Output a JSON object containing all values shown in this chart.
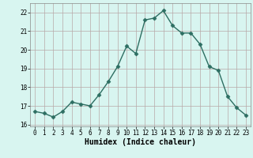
{
  "x": [
    0,
    1,
    2,
    3,
    4,
    5,
    6,
    7,
    8,
    9,
    10,
    11,
    12,
    13,
    14,
    15,
    16,
    17,
    18,
    19,
    20,
    21,
    22,
    23
  ],
  "y": [
    16.7,
    16.6,
    16.4,
    16.7,
    17.2,
    17.1,
    17.0,
    17.6,
    18.3,
    19.1,
    20.2,
    19.8,
    21.6,
    21.7,
    22.1,
    21.3,
    20.9,
    20.9,
    20.3,
    19.1,
    18.9,
    17.5,
    16.9,
    16.5
  ],
  "line_color": "#2d6e62",
  "marker": "D",
  "markersize": 2.5,
  "linewidth": 1.0,
  "bg_color": "#d8f5f0",
  "grid_color": "#b8a8a8",
  "xlabel": "Humidex (Indice chaleur)",
  "xlabel_fontsize": 7,
  "xlabel_fontweight": "bold",
  "ylim": [
    15.9,
    22.5
  ],
  "yticks": [
    16,
    17,
    18,
    19,
    20,
    21,
    22
  ],
  "xlim": [
    -0.5,
    23.5
  ],
  "xticks": [
    0,
    1,
    2,
    3,
    4,
    5,
    6,
    7,
    8,
    9,
    10,
    11,
    12,
    13,
    14,
    15,
    16,
    17,
    18,
    19,
    20,
    21,
    22,
    23
  ],
  "tick_fontsize": 5.5,
  "figsize": [
    3.2,
    2.0
  ],
  "dpi": 100
}
